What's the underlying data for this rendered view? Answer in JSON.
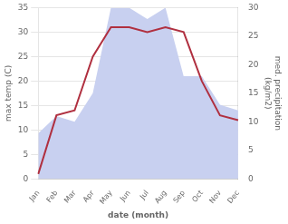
{
  "chart_data": {
    "type": "line",
    "xlabel": "date (month)",
    "ylabel": "max temp (C)",
    "y2label": "med. precipitation\n(kg/m2)",
    "categories": [
      "Jan",
      "Feb",
      "Mar",
      "Apr",
      "May",
      "Jun",
      "Jul",
      "Aug",
      "Sep",
      "Oct",
      "Nov",
      "Dec"
    ],
    "series": [
      {
        "type": "area",
        "color": "#c8d0f0",
        "axis": "y2",
        "values": [
          8,
          11,
          10,
          15,
          30,
          30,
          28,
          30,
          18,
          18,
          13,
          12
        ]
      },
      {
        "type": "line",
        "color": "#b03040",
        "values": [
          1,
          13,
          14,
          25,
          31,
          31,
          30,
          31,
          30,
          20,
          13,
          12
        ]
      }
    ],
    "ylim": [
      0,
      35
    ],
    "yticks": [
      0,
      5,
      10,
      15,
      20,
      25,
      30,
      35
    ],
    "y2lim": [
      0,
      30
    ],
    "y2ticks": [
      0,
      5,
      10,
      15,
      20,
      25,
      30
    ],
    "grid": true
  }
}
